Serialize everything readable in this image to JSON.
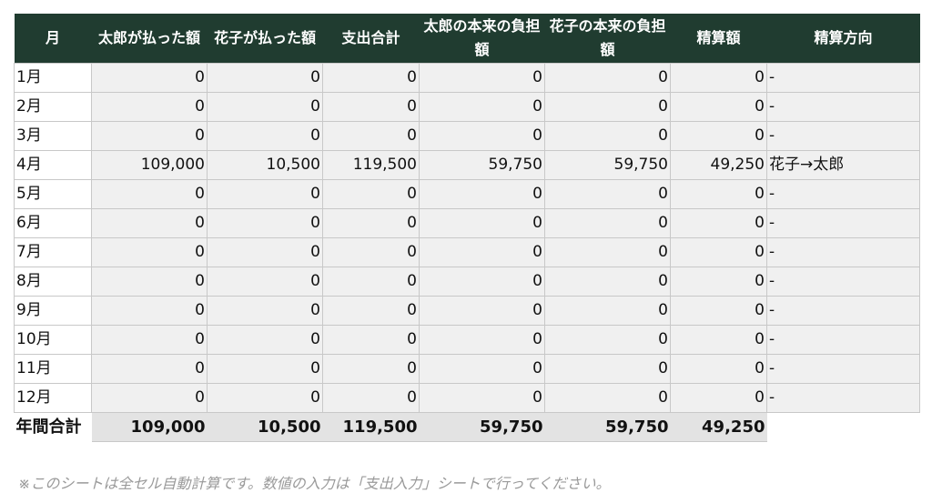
{
  "headers": [
    "月",
    "太郎が払った額",
    "花子が払った額",
    "支出合計",
    "太郎の本来の負担額",
    "花子の本来の負担額",
    "精算額",
    "精算方向"
  ],
  "rows": [
    [
      "1月",
      "0",
      "0",
      "0",
      "0",
      "0",
      "0",
      "-"
    ],
    [
      "2月",
      "0",
      "0",
      "0",
      "0",
      "0",
      "0",
      "-"
    ],
    [
      "3月",
      "0",
      "0",
      "0",
      "0",
      "0",
      "0",
      "-"
    ],
    [
      "4月",
      "109,000",
      "10,500",
      "119,500",
      "59,750",
      "59,750",
      "49,250",
      "花子→太郎"
    ],
    [
      "5月",
      "0",
      "0",
      "0",
      "0",
      "0",
      "0",
      "-"
    ],
    [
      "6月",
      "0",
      "0",
      "0",
      "0",
      "0",
      "0",
      "-"
    ],
    [
      "7月",
      "0",
      "0",
      "0",
      "0",
      "0",
      "0",
      "-"
    ],
    [
      "8月",
      "0",
      "0",
      "0",
      "0",
      "0",
      "0",
      "-"
    ],
    [
      "9月",
      "0",
      "0",
      "0",
      "0",
      "0",
      "0",
      "-"
    ],
    [
      "10月",
      "0",
      "0",
      "0",
      "0",
      "0",
      "0",
      "-"
    ],
    [
      "11月",
      "0",
      "0",
      "0",
      "0",
      "0",
      "0",
      "-"
    ],
    [
      "12月",
      "0",
      "0",
      "0",
      "0",
      "0",
      "0",
      "-"
    ]
  ],
  "total": [
    "年間合計",
    "109,000",
    "10,500",
    "119,500",
    "59,750",
    "59,750",
    "49,250"
  ],
  "note": "※このシートは全セル自動計算です。数値の入力は「支出入力」シートで行ってください。",
  "colors": {
    "header_bg": "#203c30",
    "cell_bg": "#f0f0f0",
    "total_bg": "#e3e3e3",
    "note_text": "#9a9a9a"
  }
}
